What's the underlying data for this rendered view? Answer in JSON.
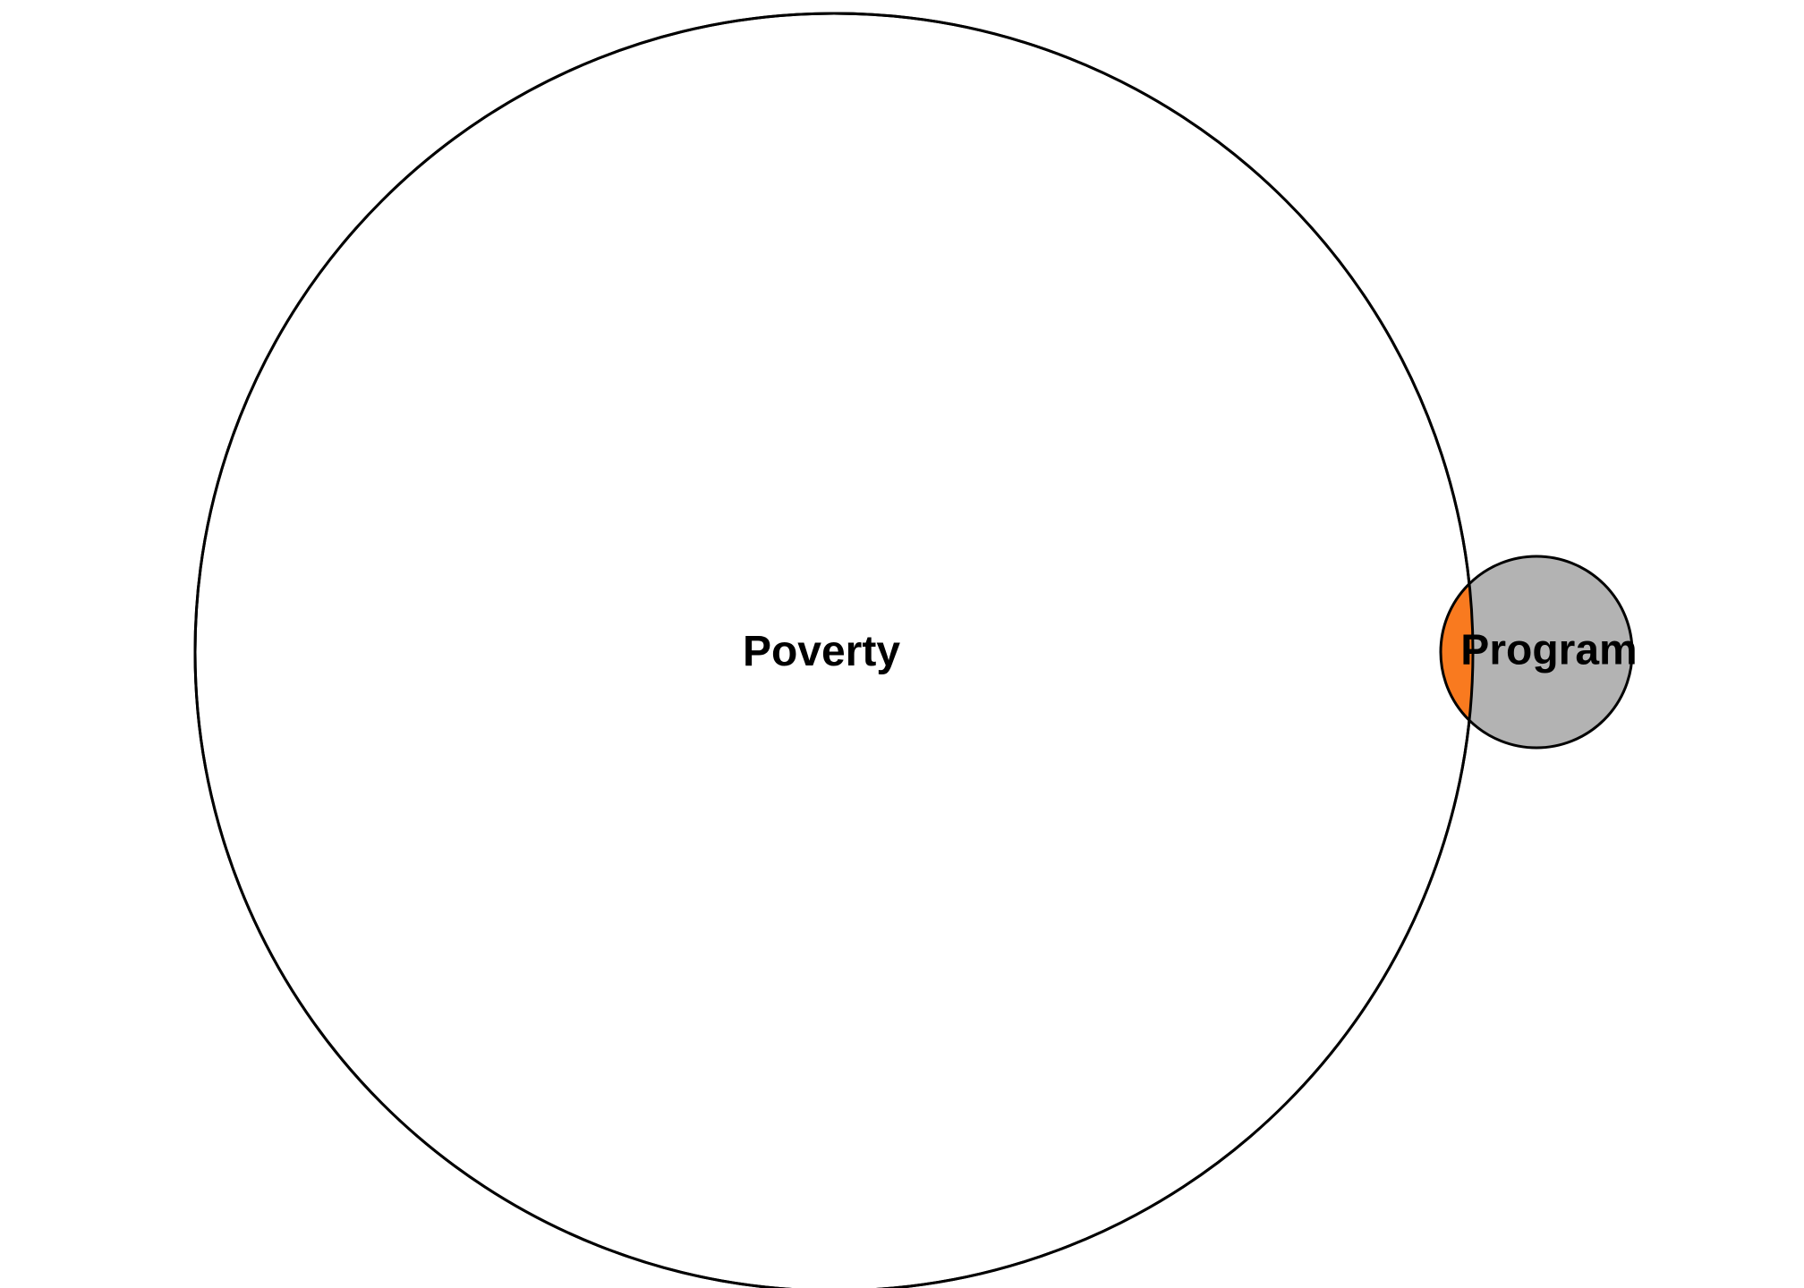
{
  "diagram": {
    "type": "venn",
    "sets": [
      {
        "id": "poverty",
        "label": "Poverty",
        "fill": "#ffffff",
        "stroke": "#000000"
      },
      {
        "id": "program",
        "label": "Program",
        "fill": "#b3b3b3",
        "stroke": "#000000"
      }
    ],
    "intersection": {
      "sets": [
        "poverty",
        "program"
      ],
      "fill": "#f97a1f"
    }
  }
}
